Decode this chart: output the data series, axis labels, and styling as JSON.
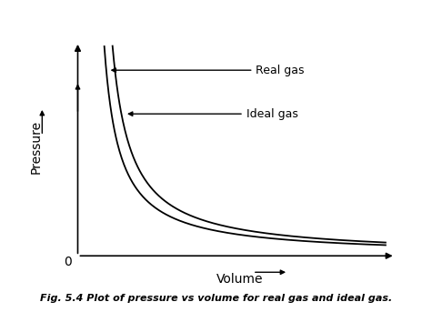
{
  "background_color": "#ffffff",
  "curve_color": "#000000",
  "axis_color": "#000000",
  "title_text": "Fig. 5.4 Plot of pressure vs volume for real gas and ideal gas.",
  "xlabel": "Volume",
  "ylabel": "Pressure",
  "real_gas_label": "Real gas",
  "ideal_gas_label": "Ideal gas",
  "figsize": [
    4.75,
    3.43
  ],
  "dpi": 100
}
